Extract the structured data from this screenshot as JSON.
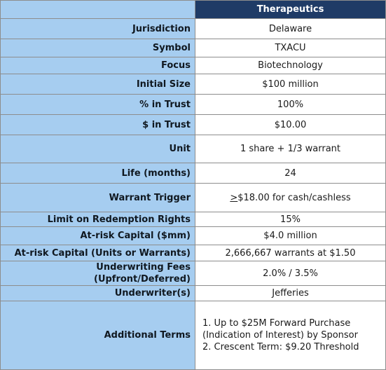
{
  "header": {
    "title": "Therapeutics"
  },
  "rows": [
    {
      "label": "Jurisdiction",
      "value": "Delaware"
    },
    {
      "label": "Symbol",
      "value": "TXACU"
    },
    {
      "label": "Focus",
      "value": "Biotechnology"
    },
    {
      "label": "Initial Size",
      "value": "$100 million"
    },
    {
      "label": "% in Trust",
      "value": "100%"
    },
    {
      "label": "$ in Trust",
      "value": "$10.00"
    },
    {
      "label": "Unit",
      "value": "1 share + 1/3 warrant"
    },
    {
      "label": "Life (months)",
      "value": "24"
    },
    {
      "label": "Warrant Trigger",
      "value_prefix": ">",
      "value": "$18.00 for cash/cashless"
    },
    {
      "label": "Limit on Redemption Rights",
      "value": "15%"
    },
    {
      "label": "At-risk Capital ($mm)",
      "value": "$4.0 million"
    },
    {
      "label": "At-risk Capital (Units or Warrants)",
      "value": "2,666,667 warrants at $1.50"
    },
    {
      "label": "Underwriting Fees (Upfront/Deferred)",
      "value": "2.0% / 3.5%"
    },
    {
      "label": "Underwriter(s)",
      "value": "Jefferies"
    },
    {
      "label": "Additional Terms",
      "lines": [
        "1. Up to $25M Forward Purchase",
        "(Indication of Interest) by Sponsor",
        "2. Crescent Term: $9.20 Threshold"
      ]
    }
  ]
}
